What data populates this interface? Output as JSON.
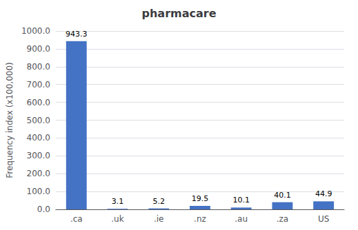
{
  "chart_data": {
    "type": "bar",
    "title": "pharmacare",
    "categories": [
      ".ca",
      ".uk",
      ".ie",
      ".nz",
      ".au",
      ".za",
      "US"
    ],
    "values": [
      943.3,
      3.1,
      5.2,
      19.5,
      10.1,
      40.1,
      44.9
    ],
    "color": "#4472C4",
    "ylabel": "Frequency index (x100,000)",
    "ylim": [
      0,
      1000
    ],
    "yticks": [
      {
        "value": 0,
        "label": "0.0"
      },
      {
        "value": 100,
        "label": "100.0"
      },
      {
        "value": 200,
        "label": "200.0"
      },
      {
        "value": 300,
        "label": "300.0"
      },
      {
        "value": 400,
        "label": "400.0"
      },
      {
        "value": 500,
        "label": "500.0"
      },
      {
        "value": 600,
        "label": "600.0"
      },
      {
        "value": 700,
        "label": "700.0"
      },
      {
        "value": 800,
        "label": "800.0"
      },
      {
        "value": 900,
        "label": "900.0"
      },
      {
        "value": 1000,
        "label": "1000.0"
      }
    ],
    "grid": true,
    "data_labels": true
  }
}
